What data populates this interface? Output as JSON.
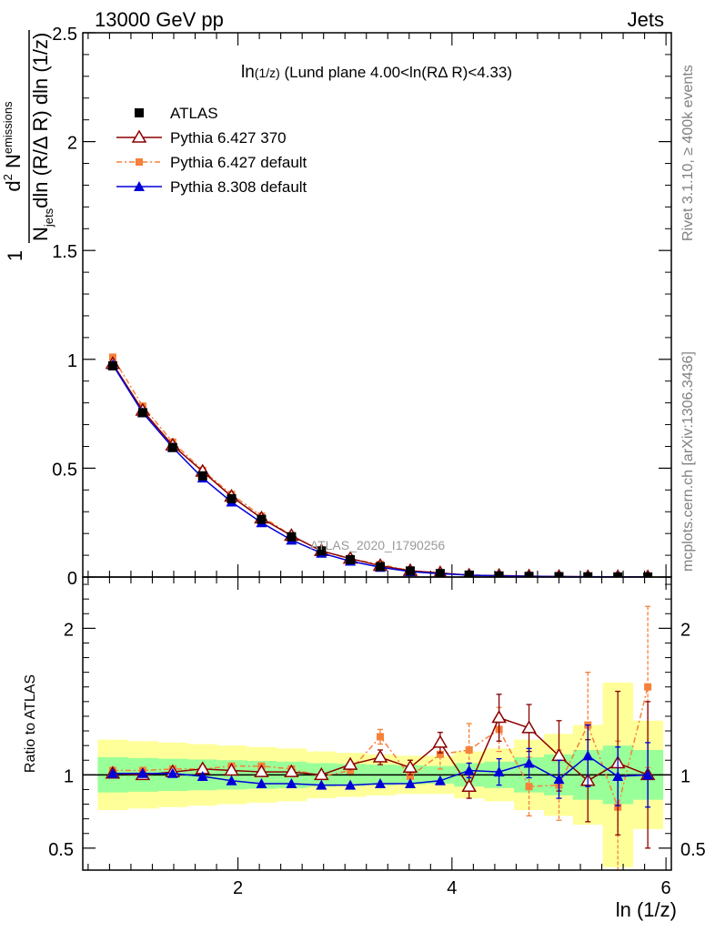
{
  "header": {
    "left": "13000 GeV pp",
    "right": "Jets"
  },
  "plot_title": {
    "main": "ln",
    "sub": "(1/z)",
    "rest": " (Lund plane 4.00<ln(R",
    "delta": "Δ",
    "end": " R)<4.33)"
  },
  "y_label": {
    "one": "1",
    "num_d": "d",
    "num_exp": "2",
    "num_N": " N",
    "num_sub": "emissions",
    "den_N": "N",
    "den_sub": "jets",
    "den_rest": "dln (R/",
    "den_delta": "Δ",
    "den_end": " R) dln (1/z)"
  },
  "ratio_ylabel": "Ratio to ATLAS",
  "xlabel": "ln (1/z)",
  "side_text": {
    "rivet": "Rivet 3.1.10, ≥ 400k events",
    "mcplots": "mcplots.cern.ch [arXiv:1306.3436]"
  },
  "watermark": "ATLAS_2020_I1790256",
  "colors": {
    "atlas": "#000000",
    "p6_370": "#8b0000",
    "p6_default": "#f5813a",
    "p8": "#0000d8",
    "band_yellow": "#ffff99",
    "band_green": "#99ff99"
  },
  "chart_data": {
    "type": "line",
    "x": [
      0.83,
      1.11,
      1.39,
      1.67,
      1.94,
      2.22,
      2.5,
      2.78,
      3.05,
      3.33,
      3.61,
      3.89,
      4.16,
      4.44,
      4.72,
      5.0,
      5.27,
      5.55,
      5.83
    ],
    "x_edges": [
      0.69,
      0.97,
      1.25,
      1.53,
      1.8,
      2.08,
      2.36,
      2.64,
      2.91,
      3.19,
      3.47,
      3.75,
      4.02,
      4.3,
      4.58,
      4.86,
      5.13,
      5.41,
      5.69,
      5.97
    ],
    "xlim": [
      0.55,
      6.05
    ],
    "xticks": [
      2,
      4,
      6
    ],
    "xlabel": "ln (1/z)",
    "main": {
      "ylim": [
        0,
        2.5
      ],
      "yticks": [
        0,
        0.5,
        1,
        1.5,
        2,
        2.5
      ],
      "ytick_labels": [
        "0",
        "0.5",
        "1",
        "1.5",
        "2",
        "2.5"
      ],
      "series": [
        {
          "name": "ATLAS",
          "key": "atlas",
          "marker": "square",
          "values": [
            0.97,
            0.755,
            0.595,
            0.465,
            0.36,
            0.265,
            0.185,
            0.12,
            0.08,
            0.048,
            0.028,
            0.016,
            0.009,
            0.005,
            0.003,
            0.002,
            0.0012,
            0.0008,
            0.0005
          ]
        },
        {
          "name": "Pythia 6.427 370",
          "key": "p6_370",
          "marker": "open-triangle",
          "values": [
            0.98,
            0.765,
            0.605,
            0.485,
            0.37,
            0.27,
            0.19,
            0.12,
            0.085,
            0.052,
            0.029,
            0.019,
            0.008,
            0.007,
            0.004,
            0.002,
            0.0012,
            0.0009,
            0.0005
          ]
        },
        {
          "name": "Pythia 6.427 default",
          "key": "p6_default",
          "marker": "square-small",
          "values": [
            1.01,
            0.785,
            0.62,
            0.49,
            0.38,
            0.28,
            0.19,
            0.12,
            0.083,
            0.058,
            0.029,
            0.018,
            0.01,
            0.006,
            0.003,
            0.002,
            0.0015,
            0.0007,
            0.0008
          ]
        },
        {
          "name": "Pythia 8.308 default",
          "key": "p8",
          "marker": "filled-triangle",
          "values": [
            0.975,
            0.755,
            0.595,
            0.455,
            0.345,
            0.25,
            0.17,
            0.11,
            0.073,
            0.045,
            0.025,
            0.015,
            0.009,
            0.005,
            0.003,
            0.002,
            0.0014,
            0.0008,
            0.0005
          ]
        }
      ]
    },
    "ratio": {
      "ylabel": "Ratio to ATLAS",
      "ylim": [
        0.35,
        2.35
      ],
      "yticks": [
        0.5,
        1,
        2
      ],
      "ytick_labels": [
        "0.5",
        "1",
        "2"
      ],
      "band_yellow": {
        "lo": [
          0.76,
          0.77,
          0.78,
          0.79,
          0.8,
          0.81,
          0.82,
          0.84,
          0.85,
          0.86,
          0.87,
          0.87,
          0.84,
          0.82,
          0.76,
          0.72,
          0.66,
          0.37,
          0.63
        ],
        "hi": [
          1.24,
          1.23,
          1.22,
          1.21,
          1.2,
          1.19,
          1.18,
          1.16,
          1.15,
          1.14,
          1.13,
          1.13,
          1.16,
          1.18,
          1.24,
          1.28,
          1.34,
          1.63,
          1.37
        ]
      },
      "band_green": {
        "lo": [
          0.88,
          0.885,
          0.89,
          0.895,
          0.9,
          0.905,
          0.91,
          0.92,
          0.925,
          0.93,
          0.935,
          0.94,
          0.92,
          0.91,
          0.88,
          0.86,
          0.83,
          0.8,
          0.83
        ],
        "hi": [
          1.12,
          1.115,
          1.11,
          1.105,
          1.1,
          1.095,
          1.09,
          1.08,
          1.075,
          1.07,
          1.065,
          1.06,
          1.08,
          1.09,
          1.12,
          1.14,
          1.17,
          1.2,
          1.17
        ]
      },
      "series": [
        {
          "name": "Pythia 6.427 370",
          "key": "p6_370",
          "marker": "open-triangle",
          "values": [
            1.01,
            1.0,
            1.02,
            1.04,
            1.03,
            1.02,
            1.02,
            1.0,
            1.07,
            1.12,
            1.05,
            1.22,
            0.92,
            1.39,
            1.32,
            1.13,
            0.96,
            1.08,
            1.0
          ],
          "err": [
            0.02,
            0.02,
            0.02,
            0.02,
            0.02,
            0.02,
            0.02,
            0.03,
            0.04,
            0.05,
            0.05,
            0.07,
            0.08,
            0.16,
            0.16,
            0.24,
            0.28,
            0.49,
            0.5
          ]
        },
        {
          "name": "Pythia 6.427 default",
          "key": "p6_default",
          "marker": "square-small",
          "values": [
            1.03,
            1.03,
            1.04,
            1.04,
            1.06,
            1.06,
            1.04,
            0.99,
            1.03,
            1.26,
            0.99,
            1.14,
            1.17,
            1.31,
            0.92,
            0.93,
            1.34,
            0.78,
            1.6
          ],
          "err": [
            0.02,
            0.02,
            0.02,
            0.02,
            0.02,
            0.02,
            0.02,
            0.03,
            0.04,
            0.05,
            0.06,
            0.1,
            0.18,
            0.15,
            0.2,
            0.24,
            0.36,
            0.45,
            0.55
          ]
        },
        {
          "name": "Pythia 8.308 default",
          "key": "p8",
          "marker": "filled-triangle",
          "values": [
            1.01,
            1.01,
            1.01,
            0.99,
            0.96,
            0.94,
            0.94,
            0.93,
            0.93,
            0.94,
            0.94,
            0.96,
            1.03,
            1.02,
            1.08,
            0.97,
            1.13,
            0.99,
            1.0
          ],
          "err": [
            0.01,
            0.01,
            0.01,
            0.01,
            0.01,
            0.01,
            0.01,
            0.02,
            0.02,
            0.02,
            0.02,
            0.03,
            0.05,
            0.09,
            0.1,
            0.13,
            0.21,
            0.2,
            0.22
          ]
        }
      ]
    }
  }
}
